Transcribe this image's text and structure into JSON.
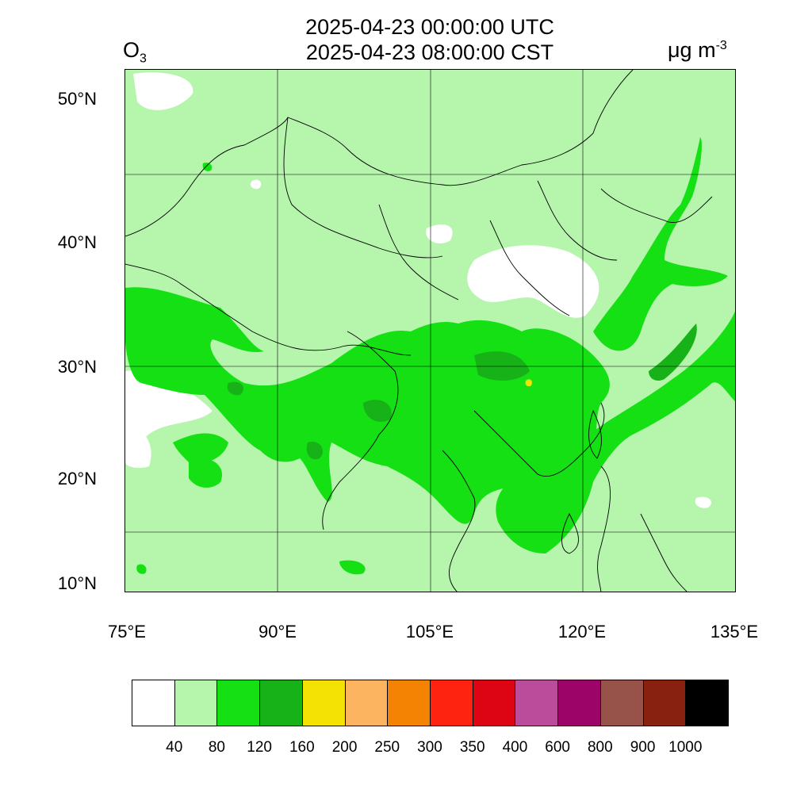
{
  "header": {
    "title_utc": "2025-04-23 00:00:00 UTC",
    "title_cst": "2025-04-23 08:00:00 CST",
    "variable_base": "O",
    "variable_sub": "3",
    "unit_base": "μg m",
    "unit_sup": "-3"
  },
  "axes": {
    "lat_labels": [
      "50°N",
      "40°N",
      "30°N",
      "20°N",
      "10°N"
    ],
    "lon_labels": [
      "75°E",
      "90°E",
      "105°E",
      "120°E",
      "135°E"
    ]
  },
  "colorbar": {
    "colors": [
      "#ffffff",
      "#b5f5ac",
      "#14e014",
      "#17b217",
      "#f4e204",
      "#fdb460",
      "#f48203",
      "#fe2310",
      "#dd0514",
      "#bb4c9c",
      "#9c0467",
      "#97524a",
      "#882110",
      "#000000"
    ],
    "tick_labels": [
      "40",
      "80",
      "120",
      "160",
      "200",
      "250",
      "300",
      "350",
      "400",
      "600",
      "800",
      "900",
      "1000"
    ]
  },
  "map_colors": {
    "background": "#b5f5ac",
    "low": "#ffffff",
    "mid": "#14e014",
    "high": "#17b217",
    "peak": "#f4e204",
    "border": "#000000"
  }
}
